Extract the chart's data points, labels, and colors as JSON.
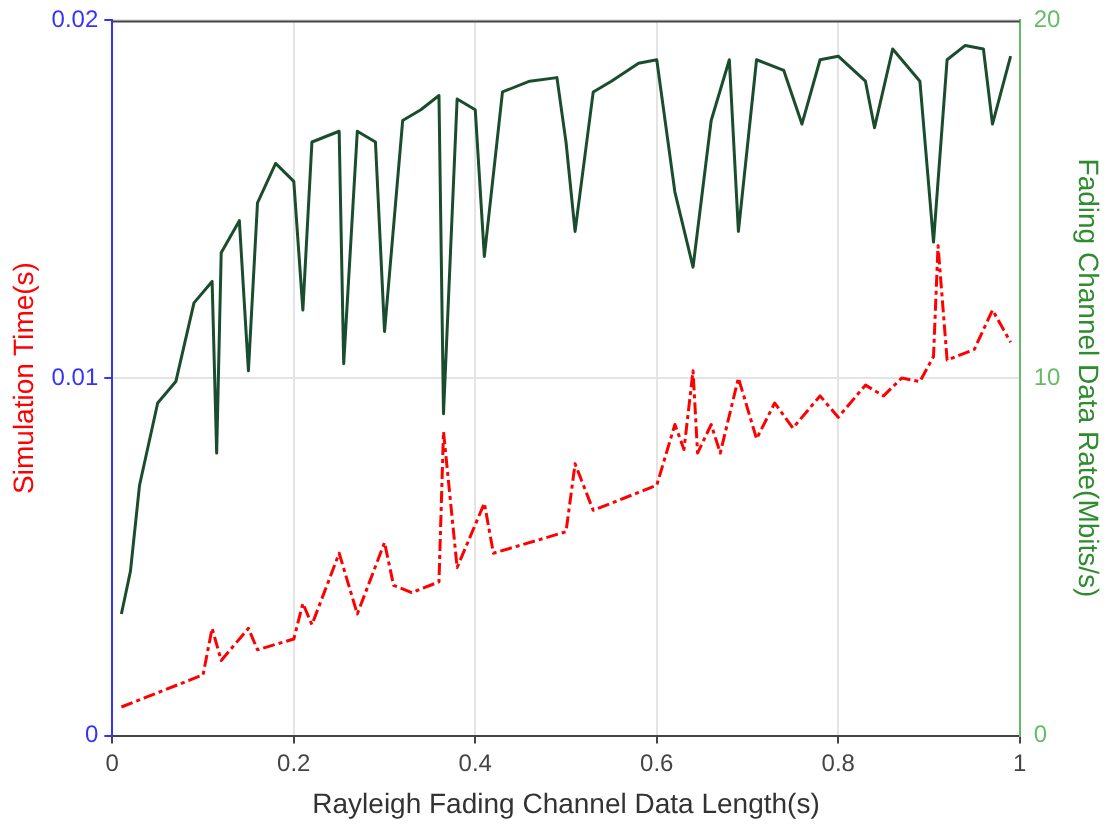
{
  "chart_data": {
    "type": "line",
    "xlabel": "Rayleigh Fading Channel Data Length(s)",
    "ylabel": "Simulation Time(s)",
    "y2label": "Fading Channel Data Rate(Mbits/s)",
    "xlim": [
      0,
      1
    ],
    "xticks": [
      0,
      0.2,
      0.4,
      0.6,
      0.8,
      1
    ],
    "ylim": [
      0,
      0.02
    ],
    "yticks": [
      0,
      0.01,
      0.02
    ],
    "y2lim": [
      0,
      20
    ],
    "y2ticks": [
      0,
      10,
      20
    ],
    "grid": true,
    "legend": false,
    "marker": "none",
    "series": [
      {
        "color": "#ff0000",
        "line_style": "dashed",
        "x": [
          0.01,
          0.05,
          0.1,
          0.11,
          0.12,
          0.15,
          0.16,
          0.2,
          0.21,
          0.22,
          0.25,
          0.27,
          0.3,
          0.31,
          0.33,
          0.36,
          0.365,
          0.38,
          0.41,
          0.42,
          0.5,
          0.51,
          0.53,
          0.58,
          0.6,
          0.62,
          0.63,
          0.64,
          0.645,
          0.66,
          0.67,
          0.69,
          0.71,
          0.73,
          0.75,
          0.78,
          0.8,
          0.83,
          0.85,
          0.87,
          0.89,
          0.905,
          0.91,
          0.92,
          0.95,
          0.97,
          0.99
        ],
        "values": [
          0.0008,
          0.0012,
          0.0017,
          0.003,
          0.0021,
          0.003,
          0.0024,
          0.0027,
          0.0037,
          0.0031,
          0.0051,
          0.0034,
          0.0054,
          0.0042,
          0.004,
          0.0043,
          0.0085,
          0.0047,
          0.0065,
          0.0051,
          0.0057,
          0.0076,
          0.0063,
          0.0068,
          0.007,
          0.0087,
          0.008,
          0.0102,
          0.0079,
          0.0087,
          0.0079,
          0.01,
          0.0083,
          0.0093,
          0.0086,
          0.0095,
          0.0089,
          0.0098,
          0.0095,
          0.01,
          0.0099,
          0.0106,
          0.0137,
          0.0105,
          0.0108,
          0.0119,
          0.011
        ]
      },
      {
        "color": "#1a4d2e",
        "axis": "y2",
        "x": [
          0.01,
          0.02,
          0.03,
          0.05,
          0.07,
          0.09,
          0.11,
          0.115,
          0.12,
          0.14,
          0.15,
          0.16,
          0.18,
          0.2,
          0.21,
          0.22,
          0.25,
          0.255,
          0.27,
          0.29,
          0.3,
          0.32,
          0.34,
          0.36,
          0.365,
          0.38,
          0.4,
          0.41,
          0.43,
          0.46,
          0.49,
          0.5,
          0.51,
          0.53,
          0.55,
          0.58,
          0.6,
          0.62,
          0.64,
          0.66,
          0.68,
          0.69,
          0.71,
          0.74,
          0.76,
          0.78,
          0.8,
          0.83,
          0.84,
          0.86,
          0.89,
          0.905,
          0.92,
          0.94,
          0.96,
          0.97,
          0.99
        ],
        "values": [
          3.4,
          4.6,
          7,
          9.3,
          9.9,
          12.1,
          12.7,
          7.9,
          13.5,
          14.4,
          10.2,
          14.9,
          16,
          15.5,
          11.9,
          16.6,
          16.9,
          10.4,
          16.9,
          16.6,
          11.3,
          17.2,
          17.5,
          17.9,
          9,
          17.8,
          17.5,
          13.4,
          18,
          18.3,
          18.4,
          16.6,
          14.1,
          18,
          18.3,
          18.8,
          18.9,
          15.2,
          13.1,
          17.2,
          18.9,
          14.1,
          18.9,
          18.6,
          17.1,
          18.9,
          19,
          18.3,
          17,
          19.2,
          18.3,
          13.8,
          18.9,
          19.3,
          19.2,
          17.1,
          19
        ]
      }
    ]
  }
}
